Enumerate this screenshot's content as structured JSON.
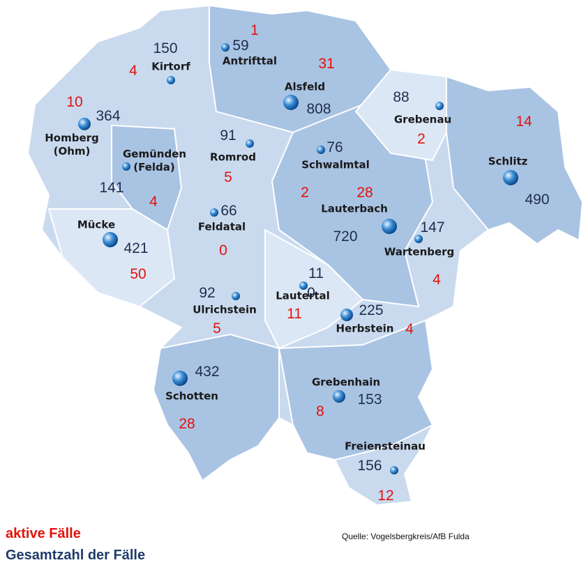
{
  "municipalities": [
    {
      "name": "Antrifttal",
      "total": 59,
      "active": 1
    },
    {
      "name": "Kirtorf",
      "total": 150,
      "active": 4
    },
    {
      "name": "Alsfeld",
      "total": 808,
      "active": 31
    },
    {
      "name": "Grebenau",
      "total": 88,
      "active": 2
    },
    {
      "name": "Schlitz",
      "total": 490,
      "active": 14
    },
    {
      "name": "Homberg (Ohm)",
      "total": 364,
      "active": 10
    },
    {
      "name": "Gemünden (Felda)",
      "total": 141,
      "active": 4
    },
    {
      "name": "Romrod",
      "total": 91,
      "active": 5
    },
    {
      "name": "Schwalmtal",
      "total": 76,
      "active": 2
    },
    {
      "name": "Lauterbach",
      "total": 720,
      "active": 28
    },
    {
      "name": "Wartenberg",
      "total": 147,
      "active": 4
    },
    {
      "name": "Feldatal",
      "total": 66,
      "active": 0
    },
    {
      "name": "Mücke",
      "total": 421,
      "active": 50
    },
    {
      "name": "Ulrichstein",
      "total": 92,
      "active": 5
    },
    {
      "name": "Lautertal",
      "total": 11,
      "active": 11,
      "overlap_label": 0
    },
    {
      "name": "Herbstein",
      "total": 225,
      "active": 4
    },
    {
      "name": "Schotten",
      "total": 432,
      "active": 28
    },
    {
      "name": "Grebenhain",
      "total": 153,
      "active": 8
    },
    {
      "name": "Freiensteinau",
      "total": 156,
      "active": 12
    }
  ],
  "legend": {
    "active": "aktive Fälle",
    "total": "Gesamtzahl der Fälle"
  },
  "source": "Quelle: Vogelsbergkreis/AfB Fulda"
}
